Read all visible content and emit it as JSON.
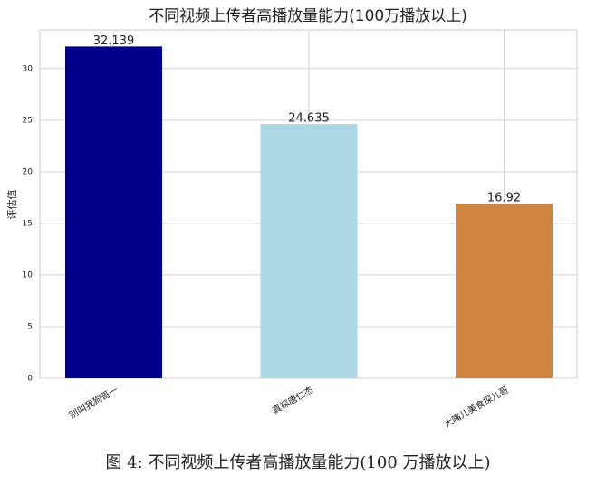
{
  "chart_data": {
    "type": "bar",
    "title": "不同视频上传者高播放量能力(100万播放以上)",
    "ylabel": "评估值",
    "categories": [
      "别叫我狗哥一",
      "真探唐仁杰",
      "大嘴儿美食探儿哥"
    ],
    "values": [
      32.139,
      24.635,
      16.92
    ],
    "colors": [
      "#00008b",
      "#add8e6",
      "#cd853f"
    ],
    "ylim": [
      0,
      33.75
    ],
    "yticks": [
      0,
      5,
      10,
      15,
      20,
      25,
      30
    ],
    "grid": true,
    "caption": "图 4: 不同视频上传者高播放量能力(100 万播放以上)"
  }
}
